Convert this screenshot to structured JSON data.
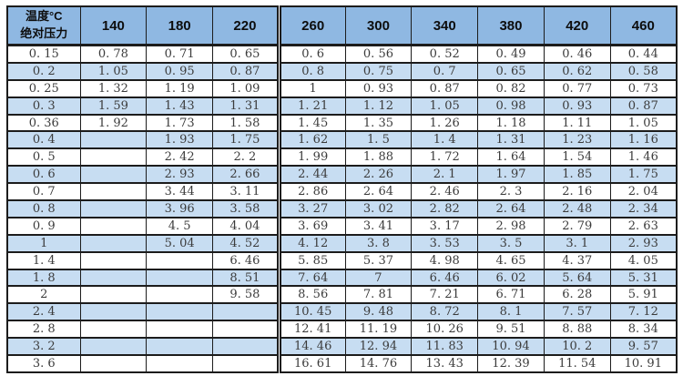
{
  "table": {
    "corner": {
      "line1": "温度°C",
      "line2": "绝对压力"
    }
  },
  "colors": {
    "header_bg": "#8FB8E2",
    "stripe_row_bg": "#C7DDF2",
    "plain_row_bg": "#FFFFFF",
    "border": "#1C1C1C",
    "header_text": "#0D0D0D",
    "cell_text": "#3B3B3B"
  },
  "chart_data": {
    "type": "table",
    "corner_header": "温度°C / 绝对压力",
    "columns": [
      "140",
      "180",
      "220",
      "260",
      "300",
      "340",
      "380",
      "420",
      "460"
    ],
    "row_labels": [
      "0.15",
      "0.2",
      "0.25",
      "0.3",
      "0.36",
      "0.4",
      "0.5",
      "0.6",
      "0.7",
      "0.8",
      "0.9",
      "1",
      "1.4",
      "1.8",
      "2",
      "2.4",
      "2.8",
      "3.2",
      "3.6"
    ],
    "rows": [
      [
        "0.78",
        "0.71",
        "0.65",
        "0.6",
        "0.56",
        "0.52",
        "0.49",
        "0.46",
        "0.44"
      ],
      [
        "1.05",
        "0.95",
        "0.87",
        "0.8",
        "0.75",
        "0.7",
        "0.65",
        "0.62",
        "0.58"
      ],
      [
        "1.32",
        "1.19",
        "1.09",
        "1",
        "0.93",
        "0.87",
        "0.82",
        "0.77",
        "0.73"
      ],
      [
        "1.59",
        "1.43",
        "1.31",
        "1.21",
        "1.12",
        "1.05",
        "0.98",
        "0.93",
        "0.87"
      ],
      [
        "1.92",
        "1.73",
        "1.58",
        "1.45",
        "1.35",
        "1.26",
        "1.18",
        "1.11",
        "1.05"
      ],
      [
        "",
        "1.93",
        "1.75",
        "1.62",
        "1.5",
        "1.4",
        "1.31",
        "1.23",
        "1.16"
      ],
      [
        "",
        "2.42",
        "2.2",
        "1.99",
        "1.88",
        "1.72",
        "1.64",
        "1.54",
        "1.46"
      ],
      [
        "",
        "2.93",
        "2.66",
        "2.44",
        "2.26",
        "2.1",
        "1.97",
        "1.85",
        "1.75"
      ],
      [
        "",
        "3.44",
        "3.11",
        "2.86",
        "2.64",
        "2.46",
        "2.3",
        "2.16",
        "2.04"
      ],
      [
        "",
        "3.96",
        "3.58",
        "3.27",
        "3.02",
        "2.82",
        "2.64",
        "2.48",
        "2.34"
      ],
      [
        "",
        "4.5",
        "4.04",
        "3.69",
        "3.41",
        "3.17",
        "2.98",
        "2.79",
        "2.63"
      ],
      [
        "",
        "5.04",
        "4.52",
        "4.12",
        "3.8",
        "3.53",
        "3.5",
        "3.1",
        "2.93"
      ],
      [
        "",
        "",
        "6.46",
        "5.85",
        "5.37",
        "4.98",
        "4.65",
        "4.37",
        "4.05"
      ],
      [
        "",
        "",
        "8.51",
        "7.64",
        "7",
        "6.46",
        "6.02",
        "5.64",
        "5.31"
      ],
      [
        "",
        "",
        "9.58",
        "8.56",
        "7.81",
        "7.21",
        "6.71",
        "6.28",
        "5.91"
      ],
      [
        "",
        "",
        "",
        "10.45",
        "9.48",
        "8.72",
        "8.1",
        "7.57",
        "7.12"
      ],
      [
        "",
        "",
        "",
        "12.41",
        "11.19",
        "10.26",
        "9.51",
        "8.88",
        "8.34"
      ],
      [
        "",
        "",
        "",
        "14.46",
        "12.94",
        "11.83",
        "10.94",
        "10.2",
        "9.57"
      ],
      [
        "",
        "",
        "",
        "16.61",
        "14.76",
        "13.43",
        "12.39",
        "11.54",
        "10.91"
      ]
    ]
  }
}
